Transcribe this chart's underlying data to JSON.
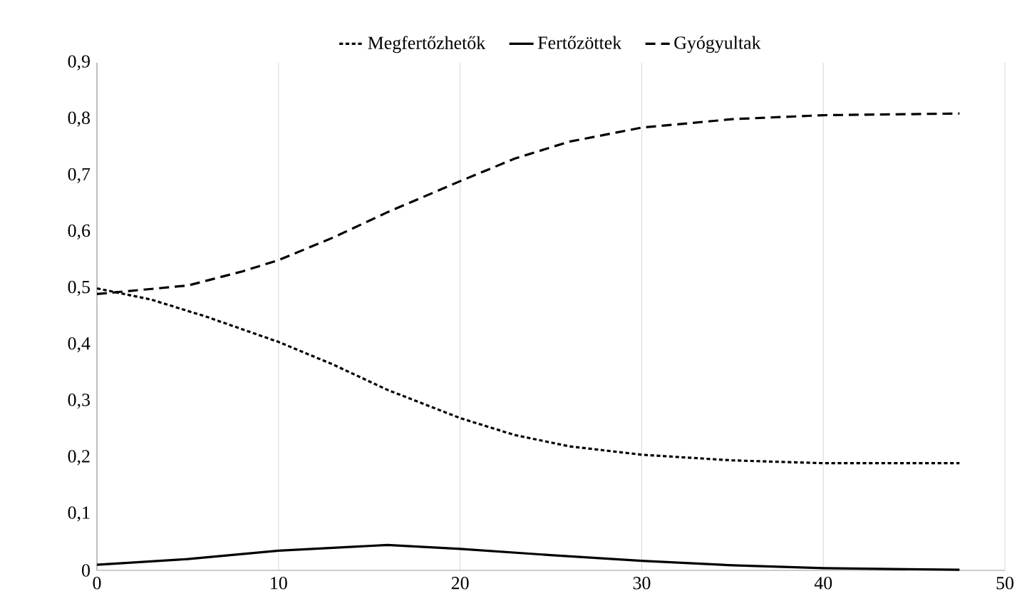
{
  "chart_data": {
    "type": "line",
    "xlim": [
      0,
      50
    ],
    "xticks": [
      0,
      10,
      20,
      30,
      40,
      50
    ],
    "ylim": [
      0,
      0.9
    ],
    "yticks": [
      0,
      {
        "value": 0.1,
        "label": "0,1"
      },
      {
        "value": 0.2,
        "label": "0,2"
      },
      {
        "value": 0.3,
        "label": "0,3"
      },
      {
        "value": 0.4,
        "label": "0,4"
      },
      {
        "value": 0.5,
        "label": "0,5"
      },
      {
        "value": 0.6,
        "label": "0,6"
      },
      {
        "value": 0.7,
        "label": "0,7"
      },
      {
        "value": 0.8,
        "label": "0,8"
      },
      {
        "value": 0.9,
        "label": "0,9"
      }
    ],
    "grid": "x",
    "legend": "top",
    "series": [
      {
        "name": "Megfertőzhetők",
        "color": "#000000",
        "line_style": "dotted",
        "x": [
          0,
          3,
          6,
          10,
          13,
          16,
          20,
          23,
          26,
          30,
          35,
          40,
          47.5
        ],
        "values": [
          0.5,
          0.48,
          0.45,
          0.405,
          0.365,
          0.32,
          0.27,
          0.24,
          0.22,
          0.205,
          0.195,
          0.19,
          0.19
        ]
      },
      {
        "name": "Fertőzöttek",
        "color": "#000000",
        "line_style": "solid",
        "x": [
          0,
          5,
          10,
          16,
          20,
          25,
          30,
          35,
          40,
          47.5
        ],
        "values": [
          0.01,
          0.02,
          0.035,
          0.045,
          0.038,
          0.027,
          0.017,
          0.009,
          0.004,
          0.001
        ]
      },
      {
        "name": "Gyógyultak",
        "color": "#000000",
        "line_style": "dashed",
        "x": [
          0,
          5,
          8,
          10,
          13,
          16,
          20,
          23,
          26,
          30,
          35,
          40,
          47.5
        ],
        "values": [
          0.49,
          0.505,
          0.53,
          0.55,
          0.59,
          0.635,
          0.69,
          0.73,
          0.76,
          0.785,
          0.8,
          0.807,
          0.81
        ]
      }
    ]
  }
}
